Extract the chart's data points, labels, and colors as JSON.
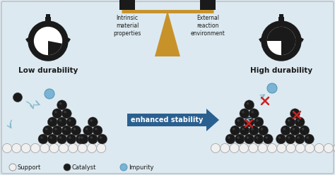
{
  "bg_color": "#dce9f0",
  "border_color": "#bbbbbb",
  "title_left": "Low durability",
  "title_right": "High durability",
  "balance_left_label": "Intrinsic\nmaterial\nproperties",
  "balance_right_label": "External\nreaction\nenvironment",
  "arrow_label": "enhanced stability",
  "legend_support": "Support",
  "legend_catalyst": "Catalyst",
  "legend_impurity": "Impurity",
  "dark_color": "#1a1a1a",
  "golden_color": "#c8922a",
  "arrow_color": "#2a6090",
  "impurity_color": "#7ab3d4",
  "support_color": "#f0f0f0",
  "support_outline": "#999999",
  "red_x_color": "#cc2222",
  "curve_arrow_color": "#88bbcc"
}
